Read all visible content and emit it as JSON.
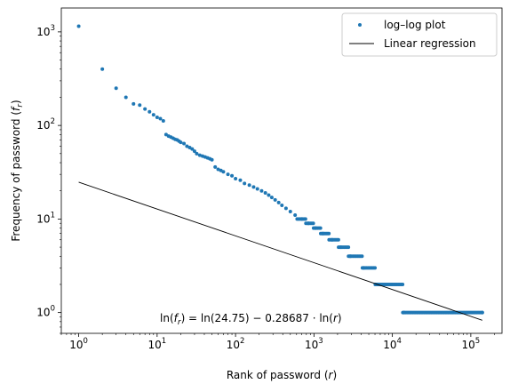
{
  "chart_data": {
    "type": "scatter",
    "title": "",
    "xlabel": {
      "text": "Rank of password (",
      "var": "r",
      "close": ")"
    },
    "ylabel": {
      "text": "Frequency of password (",
      "var": "f",
      "sub": "r",
      "close": ")"
    },
    "x_scale": "log",
    "y_scale": "log",
    "xlim": [
      0.6,
      250000
    ],
    "ylim": [
      0.6,
      1800
    ],
    "x_ticks": [
      {
        "value": 1,
        "base": "10",
        "exp": "0"
      },
      {
        "value": 10,
        "base": "10",
        "exp": "1"
      },
      {
        "value": 100,
        "base": "10",
        "exp": "2"
      },
      {
        "value": 1000,
        "base": "10",
        "exp": "3"
      },
      {
        "value": 10000,
        "base": "10",
        "exp": "4"
      },
      {
        "value": 100000,
        "base": "10",
        "exp": "5"
      }
    ],
    "y_ticks": [
      {
        "value": 1,
        "base": "10",
        "exp": "0"
      },
      {
        "value": 10,
        "base": "10",
        "exp": "1"
      },
      {
        "value": 100,
        "base": "10",
        "exp": "2"
      },
      {
        "value": 1000,
        "base": "10",
        "exp": "3"
      }
    ],
    "grid": false,
    "legend_position": "top-right",
    "series": [
      {
        "name": "log–log plot",
        "kind": "scatter",
        "color": "#1f77b4",
        "points": [
          [
            1,
            1150
          ],
          [
            2,
            400
          ],
          [
            3,
            250
          ],
          [
            4,
            200
          ],
          [
            5,
            170
          ],
          [
            6,
            165
          ],
          [
            7,
            150
          ],
          [
            8,
            140
          ],
          [
            9,
            130
          ],
          [
            10,
            122
          ],
          [
            11,
            118
          ],
          [
            12,
            112
          ],
          [
            13,
            80
          ],
          [
            14,
            77
          ],
          [
            15,
            75
          ],
          [
            16,
            73
          ],
          [
            17,
            71
          ],
          [
            18,
            70
          ],
          [
            19,
            68
          ],
          [
            20,
            66
          ],
          [
            22,
            64
          ],
          [
            24,
            60
          ],
          [
            26,
            58
          ],
          [
            28,
            56
          ],
          [
            30,
            53
          ],
          [
            32,
            50
          ],
          [
            35,
            48
          ],
          [
            38,
            47
          ],
          [
            41,
            46
          ],
          [
            44,
            45
          ],
          [
            47,
            44
          ],
          [
            50,
            43
          ],
          [
            55,
            36
          ],
          [
            60,
            34
          ],
          [
            65,
            33
          ],
          [
            70,
            32
          ],
          [
            80,
            30
          ],
          [
            90,
            29
          ],
          [
            100,
            27
          ],
          [
            115,
            26
          ],
          [
            130,
            24
          ],
          [
            150,
            23
          ],
          [
            170,
            22
          ],
          [
            190,
            21
          ],
          [
            215,
            20
          ],
          [
            240,
            19
          ],
          [
            265,
            18
          ],
          [
            290,
            17
          ],
          [
            320,
            16
          ],
          [
            355,
            15
          ],
          [
            390,
            14
          ],
          [
            440,
            13
          ],
          [
            500,
            12
          ],
          [
            575,
            11
          ],
          [
            700,
            10
          ],
          [
            850,
            9
          ],
          [
            1050,
            8
          ],
          [
            1300,
            7
          ],
          [
            1700,
            6
          ],
          [
            2200,
            5
          ],
          [
            2900,
            4
          ],
          [
            4300,
            3
          ],
          [
            6200,
            2
          ],
          [
            14000,
            1
          ],
          [
            140000,
            1
          ]
        ],
        "plateaus": [
          {
            "y": 10,
            "x": [
              610,
              780
            ]
          },
          {
            "y": 9,
            "x": [
              790,
              980
            ]
          },
          {
            "y": 8,
            "x": [
              990,
              1210
            ]
          },
          {
            "y": 7,
            "x": [
              1220,
              1550
            ]
          },
          {
            "y": 6,
            "x": [
              1560,
              2050
            ]
          },
          {
            "y": 5,
            "x": [
              2060,
              2750
            ]
          },
          {
            "y": 4,
            "x": [
              2760,
              4100
            ]
          },
          {
            "y": 3,
            "x": [
              4150,
              6000
            ]
          },
          {
            "y": 2,
            "x": [
              6050,
              13500
            ]
          },
          {
            "y": 1,
            "x": [
              13600,
              140000
            ]
          }
        ]
      },
      {
        "name": "Linear regression",
        "kind": "line",
        "color": "#000000",
        "x": [
          1,
          140000
        ],
        "y": [
          24.75,
          0.827
        ]
      }
    ],
    "annotation": {
      "text_parts": [
        "ln(",
        "f",
        "r",
        ") = ln(24.75) − 0.28687 · ln(",
        "r",
        ")"
      ],
      "x": 10,
      "y": 0.78
    }
  }
}
